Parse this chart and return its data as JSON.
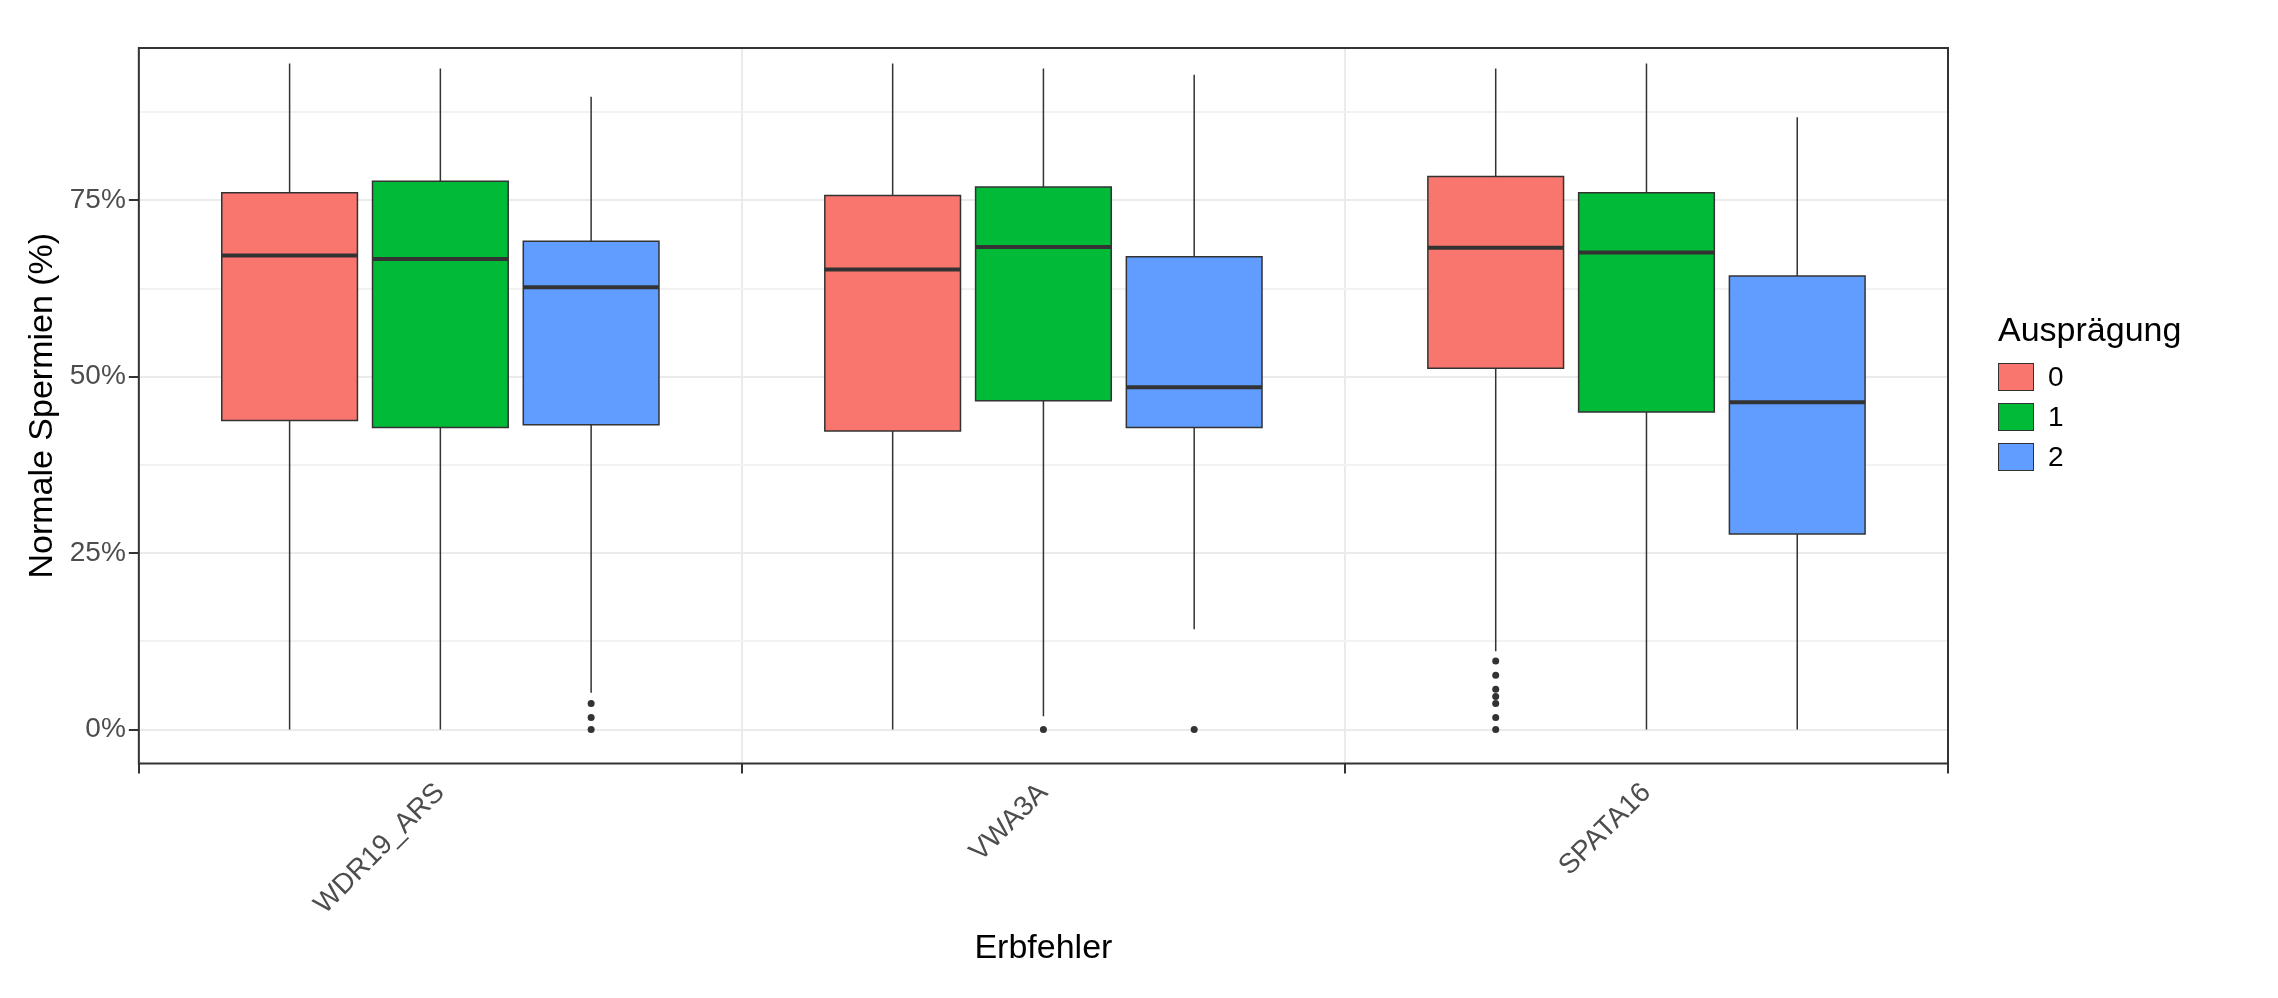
{
  "chart_data": {
    "type": "box",
    "xlabel": "Erbfehler",
    "ylabel": "Normale Spermien (%)",
    "legend_title": "Ausprägung",
    "legend": "right",
    "grid": true,
    "categories": [
      "WDR19_ARS",
      "VWA3A",
      "SPATA16"
    ],
    "ylim": [
      -4.8,
      96.6
    ],
    "yticks": [
      {
        "value": 0,
        "label": "0%"
      },
      {
        "value": 12.5,
        "label": null
      },
      {
        "value": 25,
        "label": "25%"
      },
      {
        "value": 37.5,
        "label": null
      },
      {
        "value": 50,
        "label": "50%"
      },
      {
        "value": 62.5,
        "label": null
      },
      {
        "value": 75,
        "label": "75%"
      },
      {
        "value": 87.5,
        "label": null
      }
    ],
    "series": [
      {
        "name": "0",
        "color": "#f8766d",
        "boxes": [
          {
            "low": 0,
            "q1": 43.8,
            "median": 67.2,
            "q3": 76.1,
            "high": 94.4
          },
          {
            "low": 0,
            "q1": 42.3,
            "median": 65.2,
            "q3": 75.7,
            "high": 94.4
          },
          {
            "low": 11.1,
            "q1": 51.2,
            "median": 68.3,
            "q3": 78.4,
            "high": 93.7,
            "outliers": [
              9.7,
              7.7,
              5.7,
              4.7,
              3.7,
              1.7,
              0
            ]
          }
        ]
      },
      {
        "name": "1",
        "color": "#00ba38",
        "boxes": [
          {
            "low": 0,
            "q1": 42.8,
            "median": 66.7,
            "q3": 77.7,
            "high": 93.7
          },
          {
            "low": 1.9,
            "q1": 46.6,
            "median": 68.4,
            "q3": 76.9,
            "high": 93.7,
            "outliers": [
              0
            ]
          },
          {
            "low": 0,
            "q1": 45,
            "median": 67.6,
            "q3": 76.1,
            "high": 94.4
          }
        ]
      },
      {
        "name": "2",
        "color": "#619cff",
        "boxes": [
          {
            "low": 5.2,
            "q1": 43.2,
            "median": 62.7,
            "q3": 69.2,
            "high": 89.7,
            "outliers": [
              3.7,
              1.7,
              0
            ]
          },
          {
            "low": 14.2,
            "q1": 42.8,
            "median": 48.5,
            "q3": 67,
            "high": 92.8,
            "outliers": [
              0
            ]
          },
          {
            "low": 0,
            "q1": 27.7,
            "median": 46.4,
            "q3": 64.3,
            "high": 86.8
          }
        ]
      }
    ]
  }
}
